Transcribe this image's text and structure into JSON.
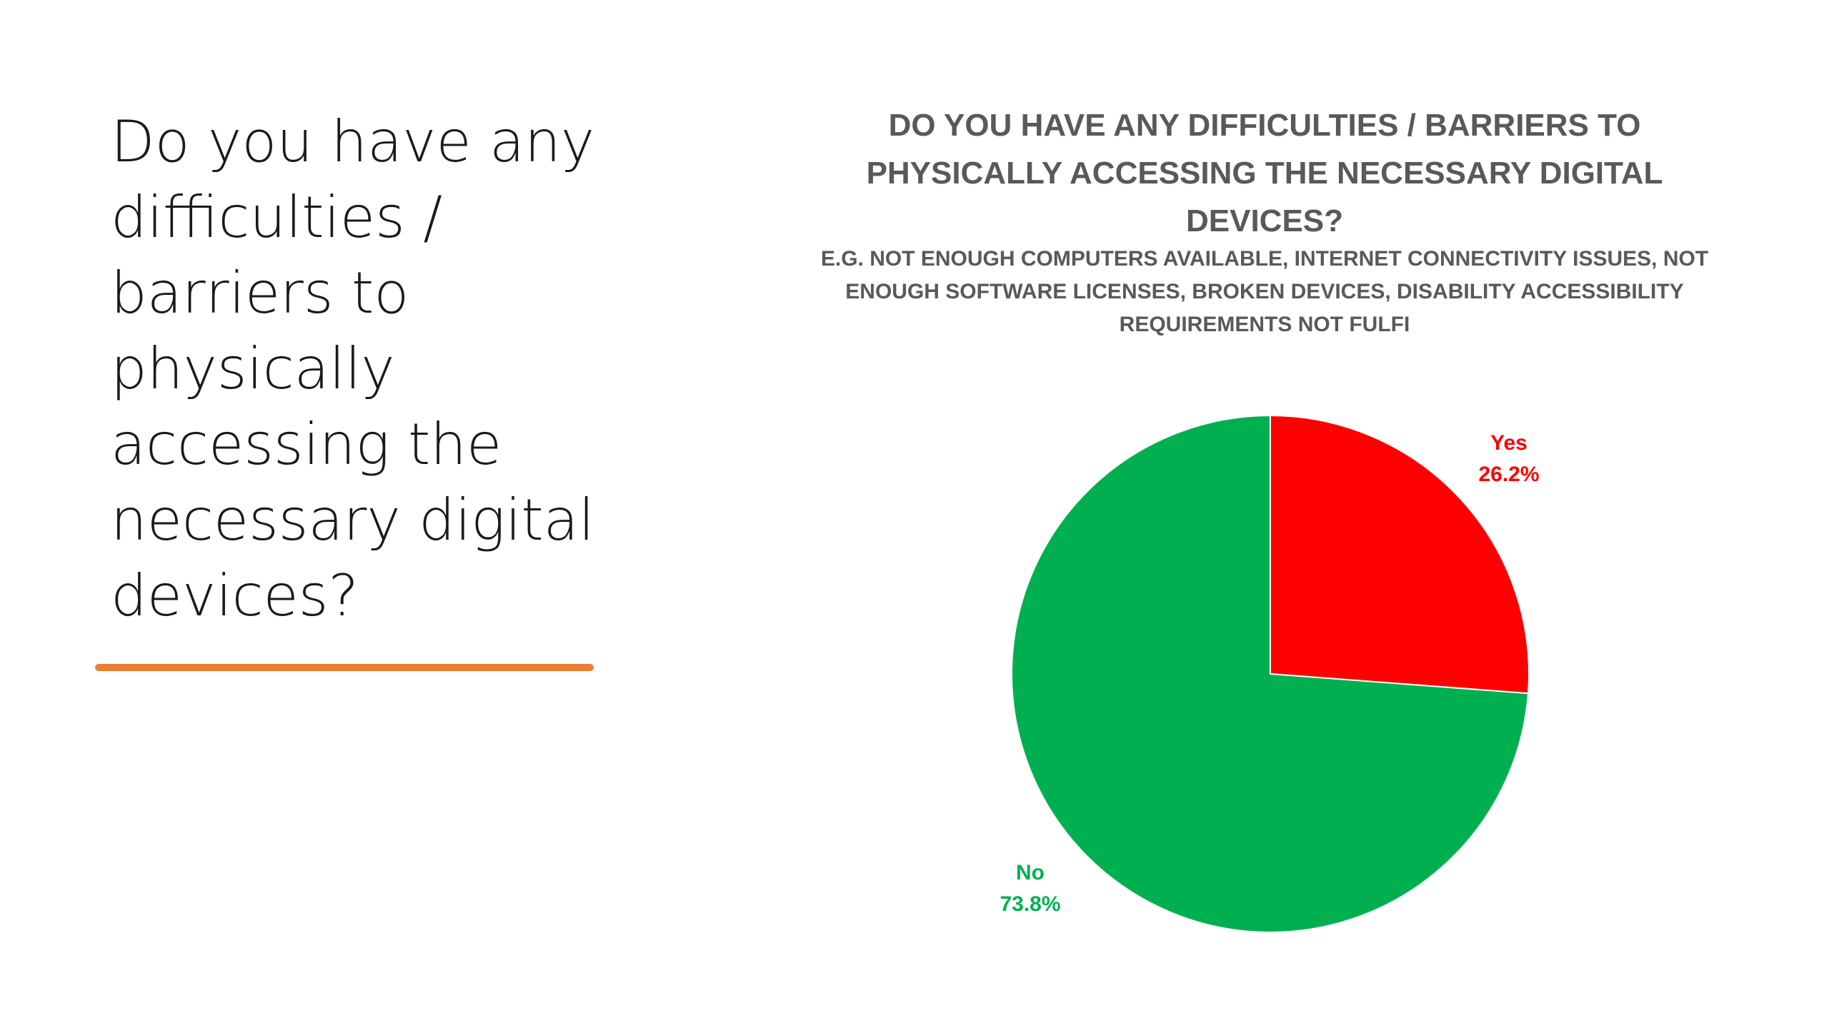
{
  "slide": {
    "heading": "Do you have any difficulties / barriers to physically accessing the necessary digital devices?",
    "accent_color": "#ed7d31"
  },
  "chart_data": {
    "type": "pie",
    "title": "DO YOU HAVE ANY DIFFICULTIES / BARRIERS TO PHYSICALLY ACCESSING THE NECESSARY DIGITAL DEVICES?",
    "subtitle": "E.G. NOT ENOUGH COMPUTERS AVAILABLE, INTERNET CONNECTIVITY ISSUES, NOT ENOUGH SOFTWARE LICENSES, BROKEN DEVICES, DISABILITY ACCESSIBILITY REQUIREMENTS NOT FULFI",
    "categories": [
      "Yes",
      "No"
    ],
    "values": [
      26.2,
      73.8
    ],
    "value_labels": [
      "26.2%",
      "73.8%"
    ],
    "colors": [
      "#ff0000",
      "#00b050"
    ],
    "legend": "none"
  }
}
